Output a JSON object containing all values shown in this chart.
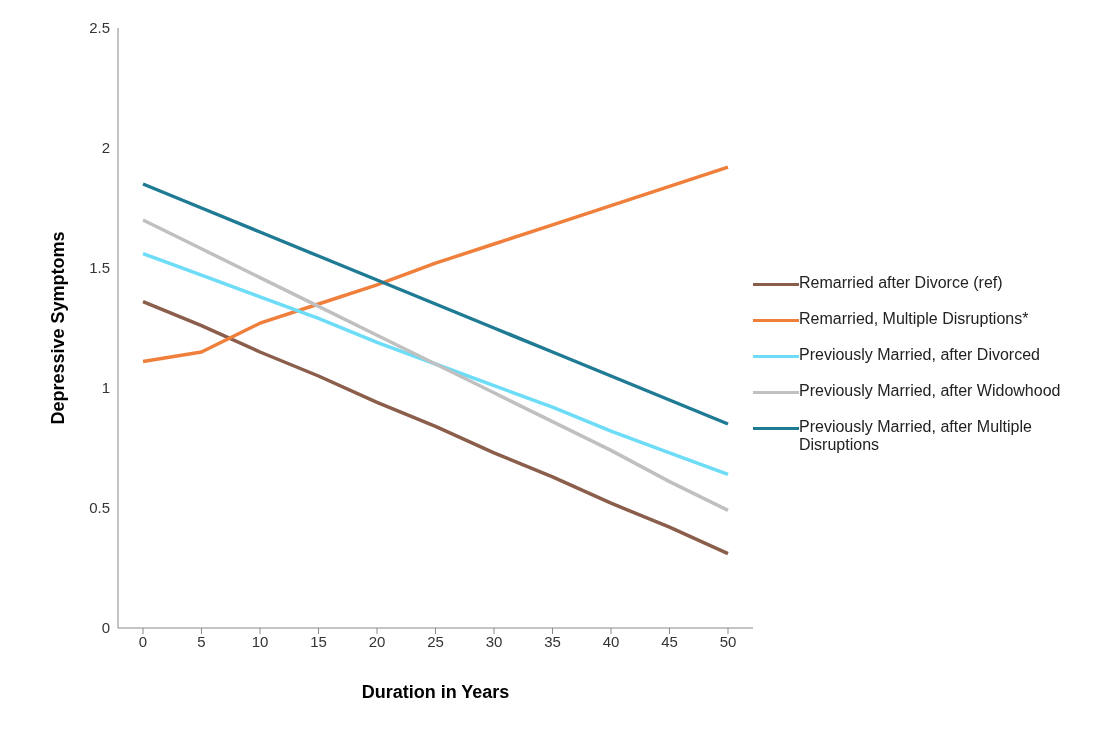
{
  "chart_data": {
    "type": "line",
    "xlabel": "Duration in Years",
    "ylabel": "Depressive Symptoms",
    "categories": [
      "0",
      "5",
      "10",
      "15",
      "20",
      "25",
      "30",
      "35",
      "40",
      "45",
      "50"
    ],
    "ylim": [
      0,
      2.5
    ],
    "yticks": [
      0,
      0.5,
      1,
      1.5,
      2,
      2.5
    ],
    "grid": false,
    "legend": "right",
    "marker": "none",
    "line_style": "solid",
    "series": [
      {
        "name": "Remarried after Divorce (ref)",
        "color": "#8b5e4b",
        "values": [
          1.36,
          1.26,
          1.15,
          1.05,
          0.94,
          0.84,
          0.73,
          0.63,
          0.52,
          0.42,
          0.31
        ]
      },
      {
        "name": "Remarried, Multiple Disruptions*",
        "color": "#f07f3c",
        "values": [
          1.11,
          1.15,
          1.27,
          1.35,
          1.43,
          1.52,
          1.6,
          1.68,
          1.76,
          1.84,
          1.92
        ]
      },
      {
        "name": "Previously Married, after Divorced",
        "color": "#6ddcf7",
        "values": [
          1.56,
          1.47,
          1.38,
          1.29,
          1.19,
          1.1,
          1.01,
          0.92,
          0.82,
          0.73,
          0.64
        ]
      },
      {
        "name": "Previously Married, after Widowhood",
        "color": "#c0c0c0",
        "values": [
          1.7,
          1.58,
          1.46,
          1.34,
          1.22,
          1.1,
          0.98,
          0.86,
          0.74,
          0.61,
          0.49
        ]
      },
      {
        "name": "Previously Married, after Multiple Disruptions",
        "color": "#1f7a94",
        "values": [
          1.85,
          1.75,
          1.65,
          1.55,
          1.45,
          1.35,
          1.25,
          1.15,
          1.05,
          0.95,
          0.85
        ]
      }
    ]
  }
}
